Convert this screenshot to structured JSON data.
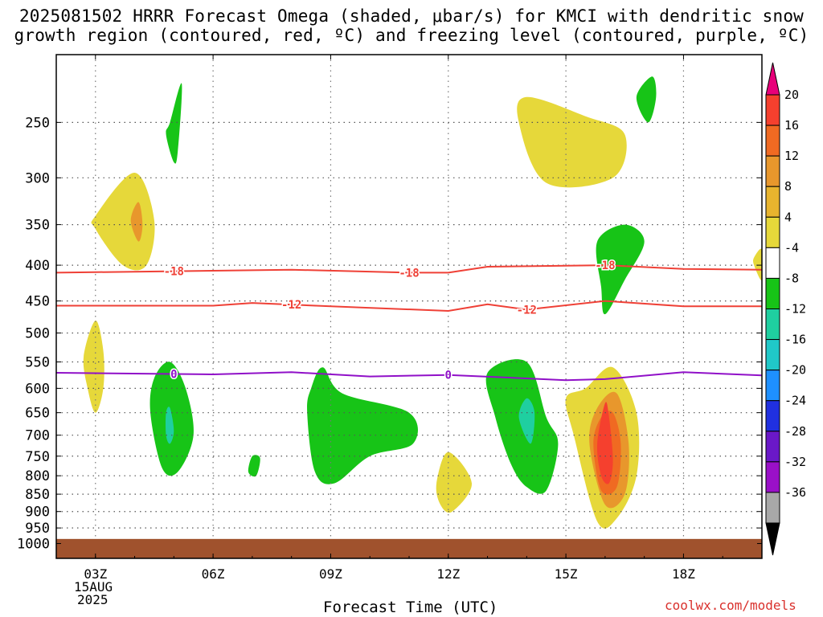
{
  "title": {
    "line1": "2025081502 HRRR Forecast Omega (shaded, μbar/s) for KMCI with dendritic snow",
    "line2": "growth region (contoured, red, ºC) and freezing level (contoured, purple, ºC)"
  },
  "footer": {
    "xlabel": "Forecast Time (UTC)",
    "credit": "coolwx.com/models",
    "date_line1": "15AUG",
    "date_line2": "2025"
  },
  "colors": {
    "yellow": "#e6d83a",
    "orange": "#e8972c",
    "dark_orange": "#f06a22",
    "red": "#f5402e",
    "green": "#17c417",
    "teal": "#1fcfa0",
    "red_contour": "#ef4036",
    "purple_contour": "#9010c8",
    "ground": "#a0522d"
  },
  "chart_data": {
    "type": "heatmap",
    "x_axis": {
      "title": "Forecast Time (UTC)",
      "ticks": [
        "03Z",
        "06Z",
        "09Z",
        "12Z",
        "15Z",
        "18Z"
      ],
      "tick_hours": [
        3,
        6,
        9,
        12,
        15,
        18
      ],
      "range_hours": [
        2,
        20
      ]
    },
    "y_axis": {
      "scale": "log",
      "inverted": true,
      "unit": "hPa",
      "ticks": [
        250,
        300,
        350,
        400,
        450,
        500,
        550,
        600,
        650,
        700,
        750,
        800,
        850,
        900,
        950,
        1000
      ],
      "range": [
        200,
        1050
      ]
    },
    "grid": true,
    "colorbar": {
      "labels": [
        20,
        16,
        12,
        8,
        4,
        -4,
        -8,
        -12,
        -16,
        -20,
        -24,
        -28,
        -32,
        -36
      ],
      "colors": [
        "#e8007a",
        "#f5402e",
        "#f06a22",
        "#e8972c",
        "#e8b42e",
        "#e6d83a",
        "#ffffff",
        "#17c417",
        "#1fcfa0",
        "#20c8c8",
        "#1e90ff",
        "#2030e0",
        "#6a18c8",
        "#9a10c8",
        "#a8a8a8",
        "#000000"
      ]
    },
    "contours": [
      {
        "label": "-18",
        "color": "red",
        "points": [
          [
            2,
            410
          ],
          [
            5,
            408
          ],
          [
            8,
            406
          ],
          [
            11,
            410
          ],
          [
            12,
            410
          ],
          [
            13,
            402
          ],
          [
            16,
            400
          ],
          [
            18,
            405
          ],
          [
            20,
            406
          ]
        ]
      },
      {
        "label": "-12",
        "color": "red",
        "points": [
          [
            2,
            457
          ],
          [
            6,
            457
          ],
          [
            7,
            453
          ],
          [
            9,
            458
          ],
          [
            12,
            465
          ],
          [
            13,
            455
          ],
          [
            14,
            463
          ],
          [
            16,
            450
          ],
          [
            18,
            458
          ],
          [
            20,
            458
          ]
        ]
      },
      {
        "label": "0",
        "color": "purple",
        "points": [
          [
            2,
            570
          ],
          [
            6,
            573
          ],
          [
            8,
            569
          ],
          [
            10,
            577
          ],
          [
            12,
            574
          ],
          [
            15,
            584
          ],
          [
            16,
            582
          ],
          [
            18,
            569
          ],
          [
            20,
            575
          ]
        ]
      }
    ],
    "omega_regions": [
      {
        "level": "yellow",
        "points": [
          [
            3,
            340
          ],
          [
            4,
            295
          ],
          [
            4.5,
            345
          ],
          [
            4.3,
            400
          ],
          [
            3.7,
            400
          ],
          [
            3,
            355
          ]
        ]
      },
      {
        "level": "orange",
        "points": [
          [
            4.1,
            325
          ],
          [
            4.2,
            350
          ],
          [
            4.1,
            370
          ],
          [
            3.9,
            345
          ]
        ]
      },
      {
        "level": "yellow",
        "points": [
          [
            3,
            480
          ],
          [
            3.2,
            530
          ],
          [
            3.2,
            600
          ],
          [
            3,
            650
          ],
          [
            2.8,
            600
          ],
          [
            2.7,
            540
          ]
        ]
      },
      {
        "level": "green",
        "points": [
          [
            4.9,
            250
          ],
          [
            5.2,
            220
          ],
          [
            5.1,
            275
          ],
          [
            5,
            285
          ],
          [
            4.8,
            260
          ]
        ]
      },
      {
        "level": "green",
        "points": [
          [
            4.5,
            580
          ],
          [
            4.9,
            550
          ],
          [
            5.3,
            600
          ],
          [
            5.5,
            700
          ],
          [
            5.1,
            790
          ],
          [
            4.7,
            780
          ],
          [
            4.4,
            650
          ]
        ]
      },
      {
        "level": "teal",
        "points": [
          [
            4.8,
            650
          ],
          [
            4.9,
            640
          ],
          [
            5,
            690
          ],
          [
            4.9,
            720
          ],
          [
            4.8,
            700
          ]
        ]
      },
      {
        "level": "green",
        "points": [
          [
            7,
            750
          ],
          [
            7.2,
            755
          ],
          [
            7.1,
            800
          ],
          [
            6.9,
            790
          ]
        ]
      },
      {
        "level": "green",
        "points": [
          [
            8.5,
            600
          ],
          [
            8.8,
            560
          ],
          [
            9.3,
            610
          ],
          [
            11,
            650
          ],
          [
            11.1,
            720
          ],
          [
            10,
            750
          ],
          [
            9.1,
            820
          ],
          [
            8.6,
            790
          ],
          [
            8.4,
            650
          ]
        ]
      },
      {
        "level": "yellow",
        "points": [
          [
            12,
            740
          ],
          [
            12.6,
            820
          ],
          [
            12.1,
            900
          ],
          [
            11.8,
            880
          ],
          [
            11.7,
            820
          ]
        ]
      },
      {
        "level": "green",
        "points": [
          [
            13,
            570
          ],
          [
            14,
            550
          ],
          [
            14.5,
            660
          ],
          [
            14.8,
            720
          ],
          [
            14.5,
            840
          ],
          [
            14,
            830
          ],
          [
            13.6,
            770
          ],
          [
            13.2,
            660
          ]
        ]
      },
      {
        "level": "teal",
        "points": [
          [
            14,
            620
          ],
          [
            14.2,
            650
          ],
          [
            14.1,
            720
          ],
          [
            13.8,
            660
          ]
        ]
      },
      {
        "level": "yellow",
        "points": [
          [
            15.5,
            600
          ],
          [
            16.2,
            560
          ],
          [
            16.8,
            650
          ],
          [
            16.8,
            800
          ],
          [
            16.3,
            920
          ],
          [
            15.8,
            930
          ],
          [
            15.2,
            700
          ],
          [
            15,
            620
          ]
        ]
      },
      {
        "level": "orange",
        "points": [
          [
            15.8,
            640
          ],
          [
            16.3,
            610
          ],
          [
            16.6,
            720
          ],
          [
            16.5,
            850
          ],
          [
            16,
            880
          ],
          [
            15.6,
            720
          ]
        ]
      },
      {
        "level": "dark_orange",
        "points": [
          [
            15.9,
            660
          ],
          [
            16.2,
            650
          ],
          [
            16.4,
            720
          ],
          [
            16.3,
            830
          ],
          [
            15.9,
            840
          ],
          [
            15.7,
            720
          ]
        ]
      },
      {
        "level": "red",
        "points": [
          [
            16,
            630
          ],
          [
            16.1,
            660
          ],
          [
            16.2,
            760
          ],
          [
            16.1,
            820
          ],
          [
            15.9,
            800
          ],
          [
            15.8,
            720
          ]
        ]
      },
      {
        "level": "yellow",
        "points": [
          [
            14,
            230
          ],
          [
            15.5,
            245
          ],
          [
            16.5,
            260
          ],
          [
            16.2,
            300
          ],
          [
            14.5,
            305
          ],
          [
            13.8,
            250
          ]
        ]
      },
      {
        "level": "green",
        "points": [
          [
            17.2,
            215
          ],
          [
            17.3,
            230
          ],
          [
            17.1,
            250
          ],
          [
            16.8,
            230
          ]
        ]
      },
      {
        "level": "green",
        "points": [
          [
            16.5,
            350
          ],
          [
            17,
            370
          ],
          [
            16.5,
            420
          ],
          [
            16,
            470
          ],
          [
            15.9,
            430
          ],
          [
            15.8,
            370
          ]
        ]
      },
      {
        "level": "yellow",
        "points": [
          [
            19.8,
            390
          ],
          [
            20,
            380
          ],
          [
            20,
            420
          ],
          [
            19.8,
            400
          ]
        ]
      }
    ],
    "ground_level_hpa": 985
  }
}
